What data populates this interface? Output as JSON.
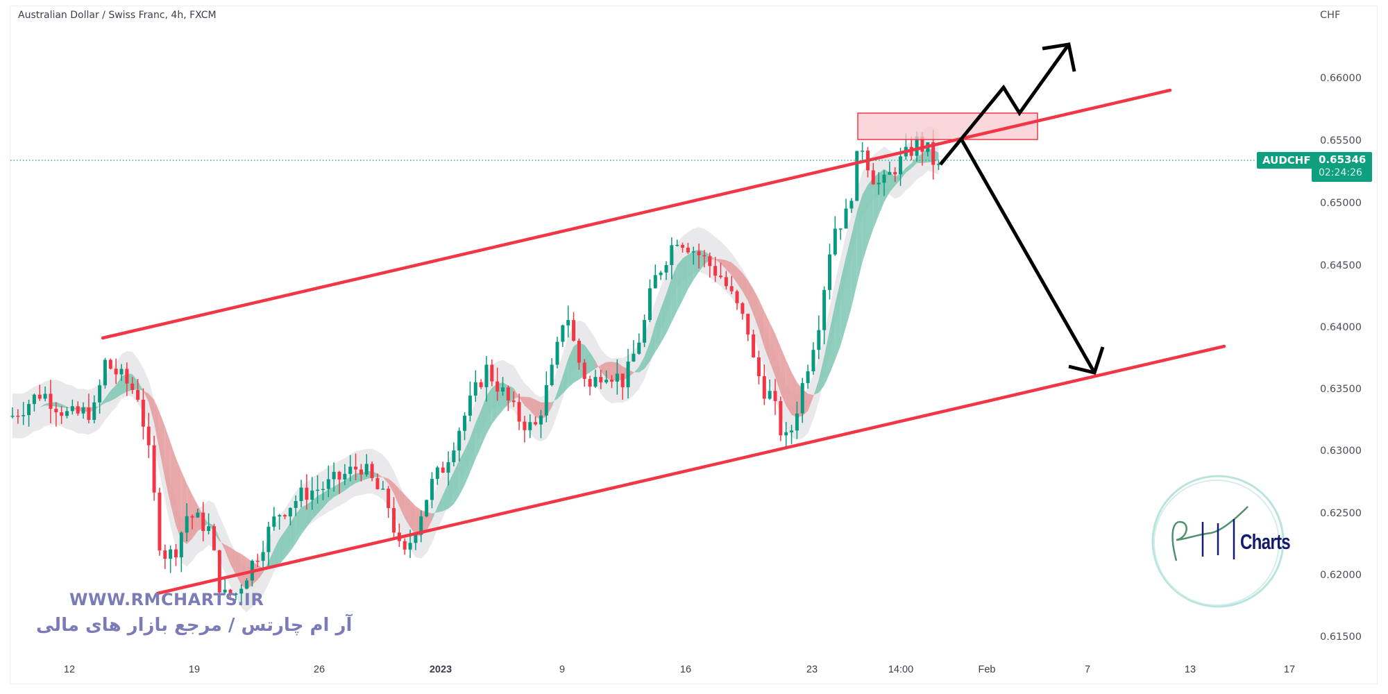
{
  "header": {
    "title": "Australian Dollar / Swiss Franc, 4h, FXCM"
  },
  "price_axis": {
    "currency": "CHF",
    "ticks": [
      "0.66000",
      "0.65500",
      "0.65000",
      "0.64500",
      "0.64000",
      "0.63500",
      "0.63000",
      "0.62500",
      "0.62000",
      "0.61500"
    ]
  },
  "time_axis": {
    "ticks": [
      "12",
      "19",
      "26",
      "2023",
      "9",
      "16",
      "23",
      "14:00",
      "Feb",
      "7",
      "13",
      "17"
    ]
  },
  "last_price": {
    "symbol": "AUDCHF",
    "price": "0.65346",
    "countdown": "02:24:26"
  },
  "colors": {
    "up": "#089981",
    "down": "#f23645",
    "channel": "#f23645",
    "zone_fill": "#f7c9cd",
    "arrow": "#000000",
    "price_tag": "#0e9f7e",
    "watermark": "#7b7bb8",
    "logo_navy": "#141a6e"
  },
  "watermark": {
    "url": "WWW.RMCHARTS.IR",
    "persian": "آر ام چارتس / مرجع بازار های مالی",
    "logo_text": "Charts"
  },
  "chart_data": {
    "type": "candlestick",
    "title": "Australian Dollar / Swiss Franc, 4h, FXCM",
    "symbol": "AUDCHF",
    "timeframe": "4h",
    "xlabel": "",
    "ylabel": "CHF",
    "ylim": [
      0.614,
      0.664
    ],
    "x_tick_labels": [
      "12",
      "19",
      "26",
      "2023",
      "9",
      "16",
      "23",
      "14:00",
      "Feb",
      "7",
      "13",
      "17"
    ],
    "y_tick_labels": [
      "0.61500",
      "0.62000",
      "0.62500",
      "0.63000",
      "0.63500",
      "0.64000",
      "0.64500",
      "0.65000",
      "0.65500",
      "0.66000"
    ],
    "last_price": 0.65346,
    "close_path_waypoints": [
      [
        16,
        0.6328
      ],
      [
        60,
        0.6348
      ],
      [
        100,
        0.6328
      ],
      [
        140,
        0.6334
      ],
      [
        148,
        0.6373
      ],
      [
        170,
        0.6362
      ],
      [
        200,
        0.6345
      ],
      [
        215,
        0.6295
      ],
      [
        225,
        0.625
      ],
      [
        232,
        0.6219
      ],
      [
        250,
        0.6217
      ],
      [
        270,
        0.625
      ],
      [
        300,
        0.6239
      ],
      [
        320,
        0.6183
      ],
      [
        340,
        0.6186
      ],
      [
        370,
        0.6217
      ],
      [
        400,
        0.625
      ],
      [
        440,
        0.6267
      ],
      [
        470,
        0.6272
      ],
      [
        520,
        0.6289
      ],
      [
        560,
        0.6256
      ],
      [
        580,
        0.6211
      ],
      [
        620,
        0.6272
      ],
      [
        640,
        0.6289
      ],
      [
        660,
        0.6317
      ],
      [
        700,
        0.6367
      ],
      [
        720,
        0.6351
      ],
      [
        745,
        0.6328
      ],
      [
        770,
        0.6317
      ],
      [
        800,
        0.6373
      ],
      [
        815,
        0.6418
      ],
      [
        830,
        0.6378
      ],
      [
        850,
        0.6351
      ],
      [
        870,
        0.6367
      ],
      [
        900,
        0.6356
      ],
      [
        930,
        0.6406
      ],
      [
        940,
        0.6434
      ],
      [
        960,
        0.6457
      ],
      [
        975,
        0.6473
      ],
      [
        990,
        0.6467
      ],
      [
        1010,
        0.6457
      ],
      [
        1040,
        0.644
      ],
      [
        1060,
        0.6418
      ],
      [
        1080,
        0.6395
      ],
      [
        1085,
        0.6373
      ],
      [
        1100,
        0.6351
      ],
      [
        1110,
        0.6345
      ],
      [
        1120,
        0.6328
      ],
      [
        1130,
        0.6306
      ],
      [
        1140,
        0.6317
      ],
      [
        1160,
        0.6362
      ],
      [
        1180,
        0.6406
      ],
      [
        1200,
        0.6479
      ],
      [
        1220,
        0.649
      ],
      [
        1230,
        0.6518
      ],
      [
        1240,
        0.6551
      ],
      [
        1255,
        0.6524
      ],
      [
        1270,
        0.6512
      ],
      [
        1290,
        0.6529
      ],
      [
        1310,
        0.654
      ],
      [
        1320,
        0.6549
      ],
      [
        1340,
        0.654
      ],
      [
        1350,
        0.6526
      ],
      [
        1357,
        0.6529
      ]
    ],
    "annotations": {
      "upper_channel": {
        "from": [
          148,
          0.6391
        ],
        "to": [
          1686,
          0.659
        ]
      },
      "lower_channel": {
        "from": [
          227,
          0.6186
        ],
        "to": [
          1764,
          0.6385
        ]
      },
      "resistance_zone": {
        "x": [
          1236,
          1495
        ],
        "price": [
          0.6573,
          0.6552
        ]
      },
      "bullish_arrow_path": [
        [
          1355,
          0.6535
        ],
        [
          1446,
          0.6596
        ],
        [
          1469,
          0.6576
        ],
        [
          1540,
          0.6631
        ]
      ],
      "bearish_arrow_path": [
        [
          1386,
          0.6551
        ],
        [
          1577,
          0.6364
        ]
      ]
    },
    "grid": false,
    "legend": null
  }
}
